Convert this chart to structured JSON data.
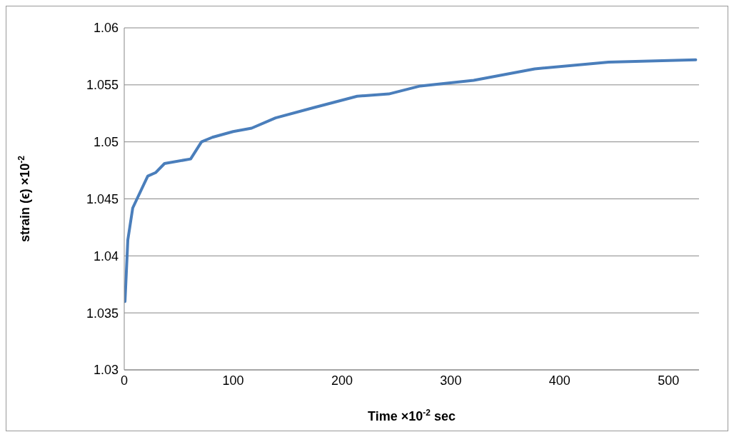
{
  "chart_data": {
    "type": "line",
    "xlabel": "Time ×10$^{-2}$  sec",
    "ylabel": "strain (ϵ) ×10$^{-2}$",
    "x": [
      0.7,
      3.3,
      7.8,
      21.6,
      28.8,
      37,
      61,
      71,
      81,
      100,
      117,
      139,
      174,
      214,
      243,
      272,
      321,
      377,
      445,
      525
    ],
    "series": [
      {
        "color": "#4a7ebb",
        "values": [
          1.036,
          1.0414,
          1.0442,
          1.047,
          1.0473,
          1.0481,
          1.0485,
          1.05,
          1.0504,
          1.0509,
          1.0512,
          1.0521,
          1.053,
          1.054,
          1.0542,
          1.0549,
          1.0554,
          1.0564,
          1.057,
          1.0572
        ]
      }
    ],
    "xlim": [
      0,
      528
    ],
    "xticks": [
      0,
      100,
      200,
      300,
      400,
      500
    ],
    "ylim": [
      1.03,
      1.06
    ],
    "yticks": [
      1.03,
      1.035,
      1.04,
      1.045,
      1.05,
      1.055,
      1.06
    ],
    "grid": "y",
    "marker": "none",
    "line_style": "solid",
    "legend": false
  }
}
